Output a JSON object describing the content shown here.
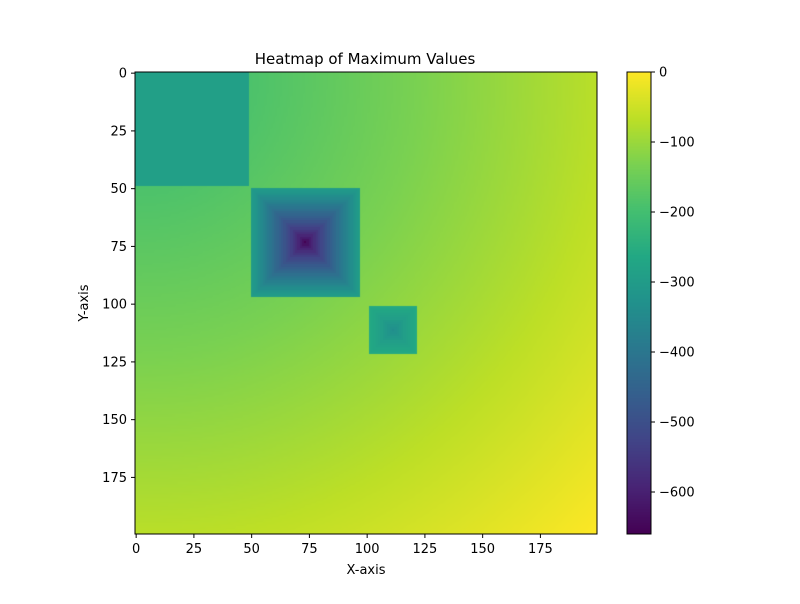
{
  "chart_data": {
    "type": "heatmap",
    "title": "Heatmap of Maximum Values",
    "xlabel": "X-axis",
    "ylabel": "Y-axis",
    "grid_size": [
      200,
      200
    ],
    "xlim": [
      0,
      199
    ],
    "ylim": [
      199,
      0
    ],
    "x_ticks": [
      0,
      25,
      50,
      75,
      100,
      125,
      150,
      175
    ],
    "y_ticks": [
      0,
      25,
      50,
      75,
      100,
      125,
      150,
      175
    ],
    "colormap": "viridis",
    "colorbar": {
      "min": -660,
      "max": 0,
      "ticks": [
        0,
        -100,
        -200,
        -300,
        -400,
        -500,
        -600
      ],
      "tick_labels": [
        "0",
        "−100",
        "−200",
        "−300",
        "−400",
        "−500",
        "−600"
      ]
    },
    "background": {
      "description_free": true,
      "value_at_origin": -220,
      "value_at_far_corner": 0
    },
    "regions": [
      {
        "kind": "flat_square",
        "x_range": [
          0,
          48
        ],
        "y_range": [
          0,
          48
        ],
        "value": -290
      },
      {
        "kind": "pyramid_well",
        "center": [
          73,
          73
        ],
        "half_width": 23,
        "edge_value": -300,
        "min_value": -660
      },
      {
        "kind": "pyramid_well",
        "center": [
          111,
          111
        ],
        "half_width": 10,
        "edge_value": -260,
        "min_value": -340
      }
    ]
  }
}
